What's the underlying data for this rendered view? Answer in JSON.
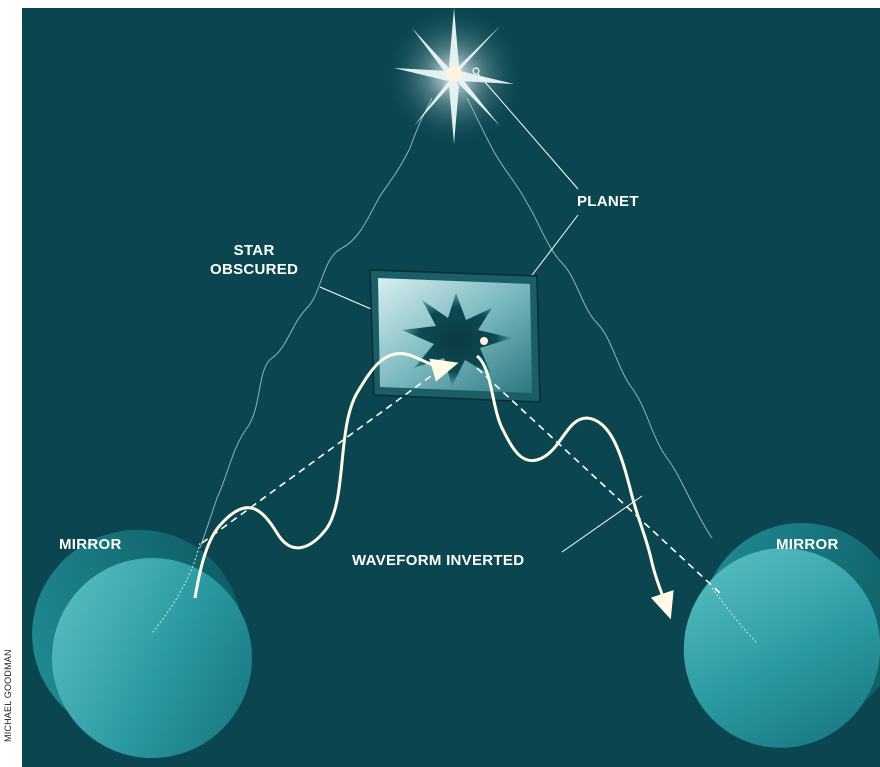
{
  "labels": {
    "planet": "PLANET",
    "star_obscured_line1": "STAR",
    "star_obscured_line2": "OBSCURED",
    "mirror_left": "MIRROR",
    "mirror_right": "MIRROR",
    "waveform_inverted": "WAVEFORM INVERTED"
  },
  "credit": "MICHAEL GOODMAN",
  "colors": {
    "background": "#0b4650",
    "label_text": "#ffffff",
    "beam": "#fffbe6",
    "mirror": "#2a9aa2",
    "star_glow": "#fff3e0"
  }
}
